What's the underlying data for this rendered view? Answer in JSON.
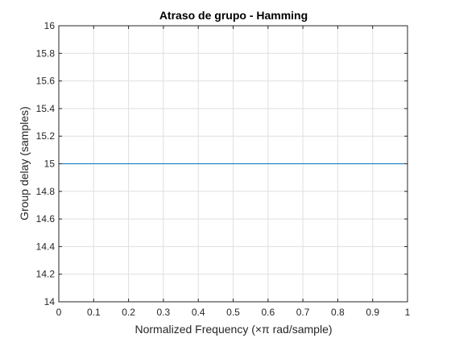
{
  "chart_data": {
    "type": "line",
    "title": "Atraso de grupo - Hamming",
    "xlabel": "Normalized Frequency (×π rad/sample)",
    "ylabel": "Group delay (samples)",
    "xlim": [
      0,
      1
    ],
    "ylim": [
      14,
      16
    ],
    "xticks": [
      "0",
      "0.1",
      "0.2",
      "0.3",
      "0.4",
      "0.5",
      "0.6",
      "0.7",
      "0.8",
      "0.9",
      "1"
    ],
    "yticks": [
      "14",
      "14.2",
      "14.4",
      "14.6",
      "14.8",
      "15",
      "15.2",
      "15.4",
      "15.6",
      "15.8",
      "16"
    ],
    "grid": true,
    "series": [
      {
        "color": "#0072BD",
        "x": [
          0,
          1
        ],
        "y": [
          15,
          15
        ]
      }
    ],
    "colors": {
      "axis": "#262626",
      "grid": "#dfdfdf"
    }
  }
}
